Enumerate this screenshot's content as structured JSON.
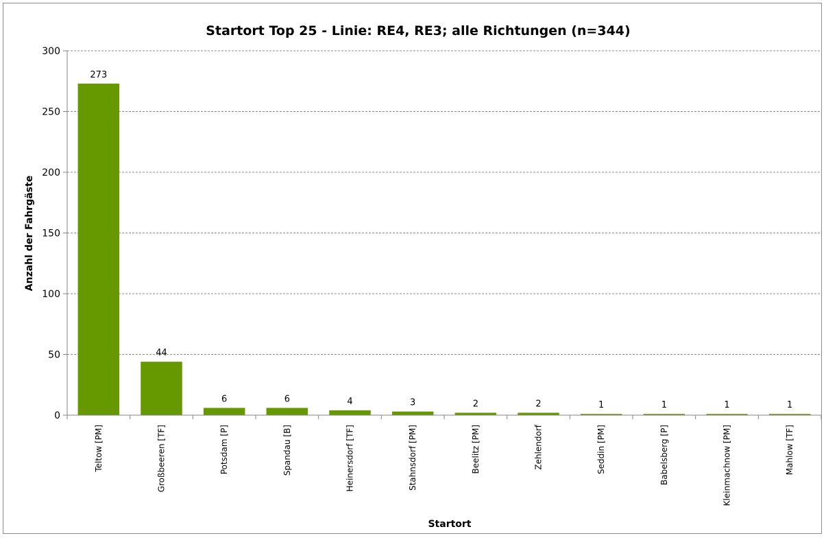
{
  "chart_data": {
    "type": "bar",
    "title": "Startort Top 25 - Linie: RE4, RE3; alle Richtungen (n=344)",
    "xlabel": "Startort",
    "ylabel": "Anzahl der Fahrgäste",
    "ylim": [
      0,
      300
    ],
    "yticks": [
      0,
      50,
      100,
      150,
      200,
      250,
      300
    ],
    "grid": true,
    "legend": "none",
    "categories": [
      "Teltow [PM]",
      "Großbeeren [TF]",
      "Potsdam [P]",
      "Spandau [B]",
      "Heinersdorf [TF]",
      "Stahnsdorf [PM]",
      "Beelitz [PM]",
      "Zehlendorf",
      "Seddin [PM]",
      "Babelsberg [P]",
      "Kleinmachnow [PM]",
      "Mahlow [TF]"
    ],
    "values": [
      273,
      44,
      6,
      6,
      4,
      3,
      2,
      2,
      1,
      1,
      1,
      1
    ],
    "colors": {
      "bar": "#669900",
      "grid": "#8c8c8c",
      "axis": "#868686"
    }
  }
}
